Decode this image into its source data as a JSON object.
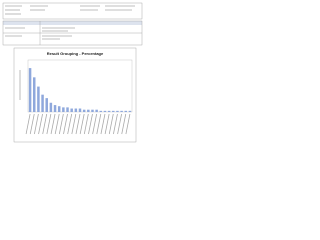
{
  "chart_data": {
    "type": "bar",
    "title": "Result Grouping - Percentage",
    "values": [
      38,
      30,
      22,
      15,
      12,
      8,
      6,
      5,
      4,
      4,
      3,
      3,
      3,
      2,
      2,
      2,
      2,
      1,
      1,
      1,
      1,
      1,
      1,
      1,
      1
    ],
    "color": "#8fa8dc",
    "ylim": [
      0,
      45
    ],
    "grid": true
  }
}
